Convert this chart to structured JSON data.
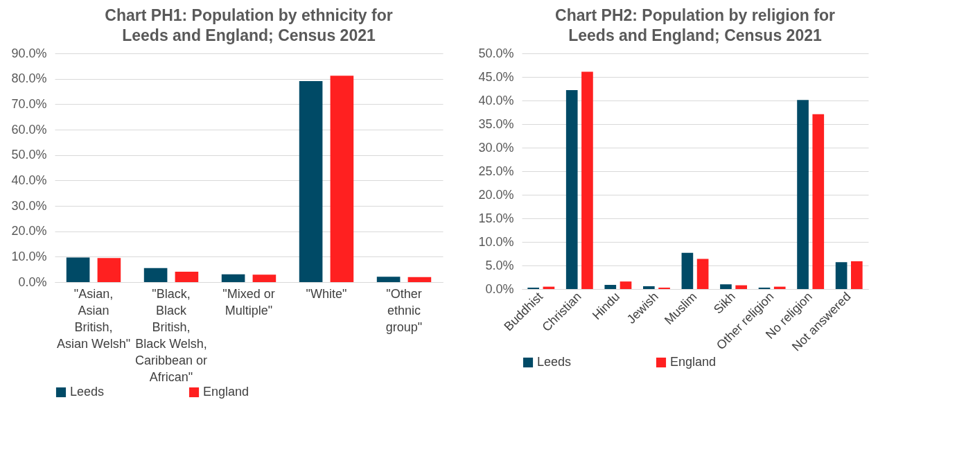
{
  "chart_data": [
    {
      "type": "bar",
      "title": "Chart PH1: Population by ethnicity for Leeds and England; Census 2021",
      "categories": [
        "\"Asian, Asian British, Asian Welsh\"",
        "\"Black, Black British, Black Welsh, Caribbean or African\"",
        "\"Mixed or Multiple\"",
        "\"White\"",
        "\"Other ethnic group\""
      ],
      "series": [
        {
          "name": "Leeds",
          "color": "#004a66",
          "values": [
            9.7,
            5.5,
            3.1,
            79.1,
            2.1
          ]
        },
        {
          "name": "England",
          "color": "#ff2020",
          "values": [
            9.5,
            4.1,
            2.9,
            81.2,
            2.0
          ]
        }
      ],
      "ylim": [
        0,
        90
      ],
      "yticks": [
        {
          "value": 0,
          "label": "0.0%"
        },
        {
          "value": 10,
          "label": "10.0%"
        },
        {
          "value": 20,
          "label": "20.0%"
        },
        {
          "value": 30,
          "label": "30.0%"
        },
        {
          "value": 40,
          "label": "40.0%"
        },
        {
          "value": 50,
          "label": "50.0%"
        },
        {
          "value": 60,
          "label": "60.0%"
        },
        {
          "value": 70,
          "label": "70.0%"
        },
        {
          "value": 80,
          "label": "80.0%"
        },
        {
          "value": 90,
          "label": "90.0%"
        }
      ],
      "grid": "y",
      "legend": "bottom"
    },
    {
      "type": "bar",
      "title": "Chart PH2: Population by religion for Leeds and England; Census 2021",
      "categories": [
        "Buddhist",
        "Christian",
        "Hindu",
        "Jewish",
        "Muslim",
        "Sikh",
        "Other religion",
        "No religion",
        "Not answered"
      ],
      "series": [
        {
          "name": "Leeds",
          "color": "#004a66",
          "values": [
            0.3,
            42.2,
            0.9,
            0.6,
            7.7,
            1.0,
            0.3,
            40.1,
            5.7
          ]
        },
        {
          "name": "England",
          "color": "#ff2020",
          "values": [
            0.5,
            46.1,
            1.6,
            0.3,
            6.4,
            0.8,
            0.5,
            37.1,
            5.9
          ]
        }
      ],
      "ylim": [
        0,
        50
      ],
      "yticks": [
        {
          "value": 0,
          "label": "0.0%"
        },
        {
          "value": 5,
          "label": "5.0%"
        },
        {
          "value": 10,
          "label": "10.0%"
        },
        {
          "value": 15,
          "label": "15.0%"
        },
        {
          "value": 20,
          "label": "20.0%"
        },
        {
          "value": 25,
          "label": "25.0%"
        },
        {
          "value": 30,
          "label": "30.0%"
        },
        {
          "value": 35,
          "label": "35.0%"
        },
        {
          "value": 40,
          "label": "40.0%"
        },
        {
          "value": 45,
          "label": "45.0%"
        },
        {
          "value": 50,
          "label": "50.0%"
        }
      ],
      "grid": "y",
      "legend": "bottom"
    }
  ]
}
